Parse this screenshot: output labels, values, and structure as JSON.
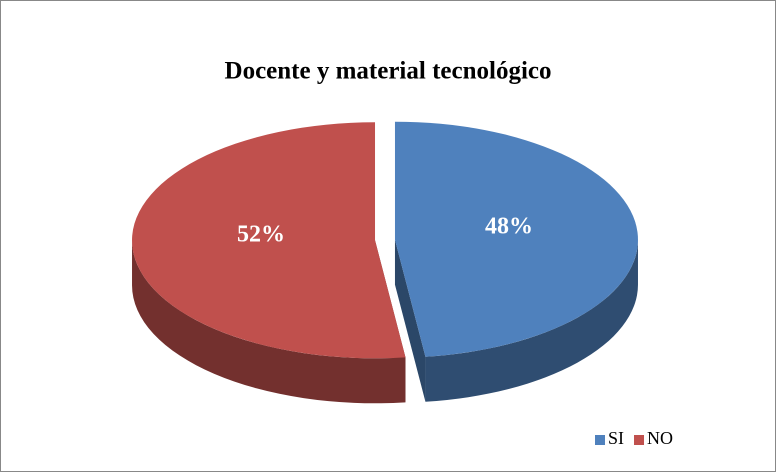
{
  "chart_data": {
    "type": "pie",
    "title": "Docente y material tecnológico",
    "categories": [
      "SI",
      "NO"
    ],
    "values": [
      48,
      52
    ],
    "value_labels": [
      "48%",
      "52%"
    ],
    "colors": [
      "#4f81bd",
      "#c0504d"
    ],
    "legend": "bottom-right",
    "three_d": true
  }
}
